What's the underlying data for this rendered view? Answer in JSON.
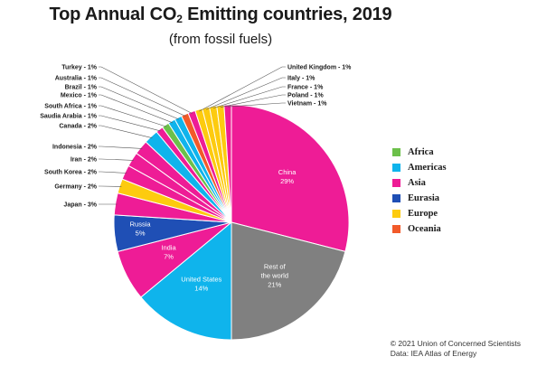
{
  "header": {
    "title_main": "Top Annual CO",
    "title_sub": "2",
    "title_rest": " Emitting countries, 2019",
    "subtitle": "(from fossil fuels)"
  },
  "footer": {
    "line1": "© 2021 Union of Concerned Scientists",
    "line2": "Data: IEA Atlas of Energy"
  },
  "chart_data": {
    "type": "pie",
    "title": "Top Annual CO2 Emitting countries, 2019",
    "subtitle": "(from fossil fuels)",
    "units": "%",
    "legend_position": "right",
    "legend": [
      {
        "label": "Africa",
        "color": "#6cc04a"
      },
      {
        "label": "Americas",
        "color": "#0fb4ec"
      },
      {
        "label": "Asia",
        "color": "#ee1c96"
      },
      {
        "label": "Eurasia",
        "color": "#1f4fb5"
      },
      {
        "label": "Europe",
        "color": "#fdcb0f"
      },
      {
        "label": "Oceania",
        "color": "#f25a2a"
      }
    ],
    "slices": [
      {
        "label": "China",
        "value_label": "29%",
        "value": 29,
        "region": "Asia",
        "color": "#ee1c96"
      },
      {
        "label": "Rest of the world",
        "value_label": "21%",
        "value": 21,
        "region": "Rest",
        "color": "#808080"
      },
      {
        "label": "United States",
        "value_label": "14%",
        "value": 14,
        "region": "Americas",
        "color": "#0fb4ec"
      },
      {
        "label": "India",
        "value_label": "7%",
        "value": 7,
        "region": "Asia",
        "color": "#ee1c96"
      },
      {
        "label": "Russia",
        "value_label": "5%",
        "value": 5,
        "region": "Eurasia",
        "color": "#1f4fb5"
      },
      {
        "label": "Japan - 3%",
        "value": 3,
        "region": "Asia",
        "color": "#ee1c96"
      },
      {
        "label": "Germany - 2%",
        "value": 2,
        "region": "Europe",
        "color": "#fdcb0f"
      },
      {
        "label": "South Korea - 2%",
        "value": 2,
        "region": "Asia",
        "color": "#ee1c96"
      },
      {
        "label": "Iran - 2%",
        "value": 2,
        "region": "Asia",
        "color": "#ee1c96"
      },
      {
        "label": "Indonesia - 2%",
        "value": 2,
        "region": "Asia",
        "color": "#ee1c96"
      },
      {
        "label": "Canada - 2%",
        "value": 2,
        "region": "Americas",
        "color": "#0fb4ec"
      },
      {
        "label": "Saudia Arabia - 1%",
        "value": 1,
        "region": "Asia",
        "color": "#ee1c96"
      },
      {
        "label": "South Africa - 1%",
        "value": 1,
        "region": "Africa",
        "color": "#6cc04a"
      },
      {
        "label": "Mexico - 1%",
        "value": 1,
        "region": "Americas",
        "color": "#0fb4ec"
      },
      {
        "label": "Brazil - 1%",
        "value": 1,
        "region": "Americas",
        "color": "#0fb4ec"
      },
      {
        "label": "Australia - 1%",
        "value": 1,
        "region": "Oceania",
        "color": "#f25a2a"
      },
      {
        "label": "Turkey - 1%",
        "value": 1,
        "region": "Asia",
        "color": "#ee1c96"
      },
      {
        "label": "United Kingdom - 1%",
        "value": 1,
        "region": "Europe",
        "color": "#fdcb0f"
      },
      {
        "label": "Italy - 1%",
        "value": 1,
        "region": "Europe",
        "color": "#fdcb0f"
      },
      {
        "label": "France - 1%",
        "value": 1,
        "region": "Europe",
        "color": "#fdcb0f"
      },
      {
        "label": "Poland - 1%",
        "value": 1,
        "region": "Europe",
        "color": "#fdcb0f"
      },
      {
        "label": "Vietnam - 1%",
        "value": 1,
        "region": "Asia",
        "color": "#ee1c96"
      }
    ]
  }
}
